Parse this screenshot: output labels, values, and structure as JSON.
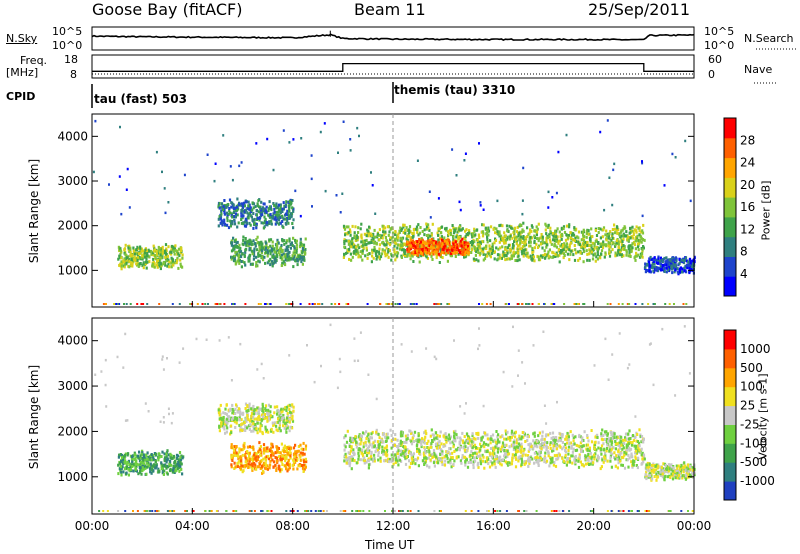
{
  "header": {
    "station": "Goose Bay (fitACF)",
    "beam": "Beam 11",
    "date": "25/Sep/2011"
  },
  "strip": {
    "nsky_label": "N.Sky",
    "nsearch_label": "N.Search",
    "freq_label": "Freq.",
    "freq_unit": "[MHz]",
    "nave_label": "Nave",
    "cpid_label": "CPID",
    "noise_ticks": [
      "10^5",
      "10^0"
    ],
    "noise_right_ticks": [
      "10^5",
      "10^0"
    ],
    "freq_ticks": [
      "18",
      "8"
    ],
    "nave_ticks": [
      "60",
      "0"
    ],
    "cpid_segments": [
      {
        "label": "tau (fast) 503",
        "start_hour": 0
      },
      {
        "label": "themis (tau) 3310",
        "start_hour": 12
      }
    ],
    "freq_series": {
      "hours": [
        0,
        10,
        10,
        22,
        22,
        24
      ],
      "values": [
        10.5,
        10.5,
        14.5,
        14.5,
        10.5,
        10.5
      ]
    },
    "nsky_series": {
      "hours": [
        0,
        2,
        4,
        6,
        8,
        9.5,
        10,
        12,
        16,
        20,
        22,
        22.2,
        24
      ],
      "values": [
        3.2,
        3.0,
        2.9,
        2.8,
        2.7,
        3.6,
        2.5,
        2.3,
        2.2,
        2.2,
        2.1,
        3.4,
        3.5
      ]
    }
  },
  "chart_data": [
    {
      "type": "heatmap",
      "title": "Power",
      "ylabel": "Slant Range [km]",
      "ylim": [
        180,
        4500
      ],
      "yticks": [
        "4000",
        "3000",
        "2000",
        "1000"
      ],
      "colorbar_label": "Power [dB]",
      "colorbar_ticks": [
        "28",
        "24",
        "20",
        "16",
        "12",
        "8",
        "4"
      ],
      "colors": [
        "#0000ff",
        "#1e44cc",
        "#2f7f7f",
        "#3fa34a",
        "#7fc43a",
        "#d9d11a",
        "#ffa500",
        "#ff6000",
        "#ff0000"
      ],
      "bands": [
        {
          "x": [
            1.0,
            3.6
          ],
          "center": 1330,
          "width": 280,
          "level": 4
        },
        {
          "x": [
            5.0,
            8.0
          ],
          "center": 2300,
          "width": 350,
          "level": 2
        },
        {
          "x": [
            5.5,
            8.5
          ],
          "center": 1450,
          "width": 350,
          "level": 3
        },
        {
          "x": [
            10.0,
            22.0
          ],
          "center": 1650,
          "width": 450,
          "level": 4
        },
        {
          "x": [
            12.5,
            15.0
          ],
          "center": 1550,
          "width": 200,
          "level": 7
        },
        {
          "x": [
            22.0,
            24.0
          ],
          "center": 1150,
          "width": 200,
          "level": 1
        }
      ]
    },
    {
      "type": "heatmap",
      "title": "Velocity",
      "ylabel": "Slant Range [km]",
      "ylim": [
        180,
        4500
      ],
      "yticks": [
        "4000",
        "3000",
        "2000",
        "1000"
      ],
      "colorbar_label": "Velocity [m s-1]",
      "colorbar_ticks": [
        "1000",
        "500",
        "100",
        "25",
        "-25",
        "-100",
        "-500",
        "-1000"
      ],
      "colors": [
        "#2040c0",
        "#2f7f7f",
        "#3fa34a",
        "#6fd040",
        "#c8c8c8",
        "#f0e020",
        "#ffa500",
        "#ff6000",
        "#ff0000"
      ],
      "bands": [
        {
          "x": [
            1.0,
            3.6
          ],
          "center": 1330,
          "width": 280,
          "level": 2
        },
        {
          "x": [
            5.0,
            8.0
          ],
          "center": 2300,
          "width": 350,
          "level": 4
        },
        {
          "x": [
            5.5,
            8.5
          ],
          "center": 1450,
          "width": 350,
          "level": 6
        },
        {
          "x": [
            10.0,
            22.0
          ],
          "center": 1650,
          "width": 450,
          "level": 4
        },
        {
          "x": [
            22.0,
            24.0
          ],
          "center": 1150,
          "width": 200,
          "level": 4
        }
      ]
    }
  ],
  "xaxis": {
    "ticks": [
      "00:00",
      "04:00",
      "08:00",
      "12:00",
      "16:00",
      "20:00",
      "00:00"
    ],
    "label": "Time UT"
  }
}
